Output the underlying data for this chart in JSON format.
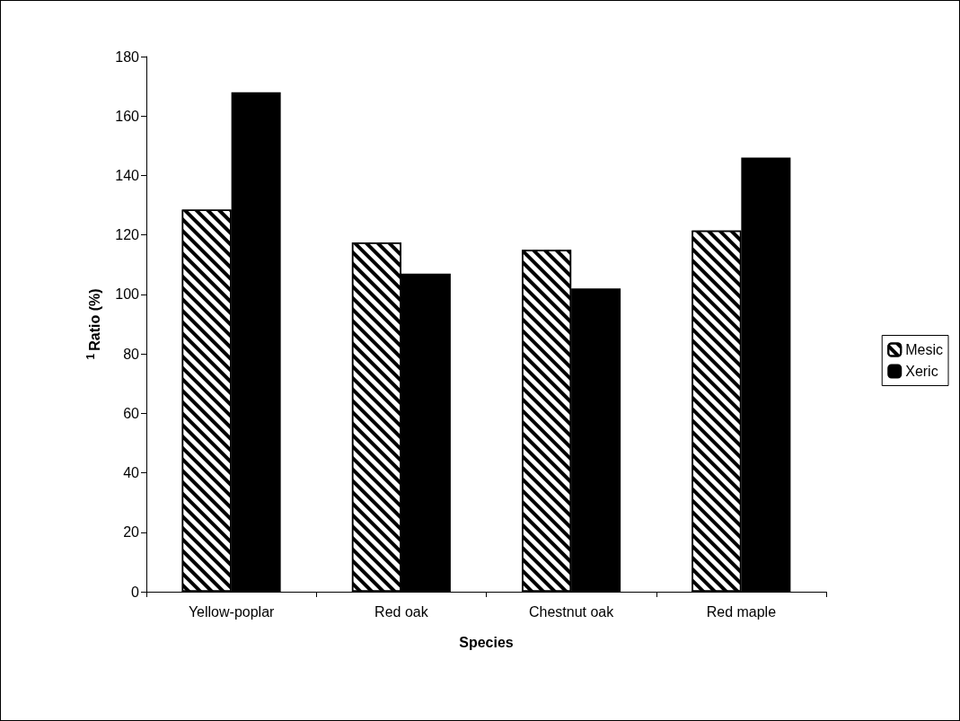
{
  "chart_data": {
    "type": "bar",
    "xlabel": "Species",
    "ylabel": "$^{1}$Ratio (%)",
    "categories": [
      "Yellow-poplar",
      "Red oak",
      "Chestnut oak",
      "Red maple"
    ],
    "series": [
      {
        "name": "Mesic",
        "color": "#ffffff",
        "values": [
          128.5,
          117.5,
          115,
          121.5
        ]
      },
      {
        "name": "Xeric",
        "color": "#000000",
        "values": [
          168,
          107,
          102,
          146
        ]
      }
    ],
    "ylim": [
      0,
      180
    ],
    "yticks": [
      0,
      20,
      40,
      60,
      80,
      100,
      120,
      140,
      160,
      180
    ],
    "grid": false,
    "legend": "right"
  }
}
